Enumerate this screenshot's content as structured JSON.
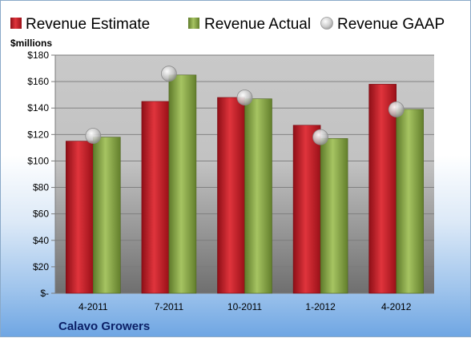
{
  "chart_data": {
    "type": "bar",
    "title": "Calavo Growers",
    "ylabel": "$millions",
    "categories": [
      "4-2011",
      "7-2011",
      "10-2011",
      "1-2012",
      "4-2012"
    ],
    "series": [
      {
        "name": "Revenue Estimate",
        "kind": "bar",
        "color": "#c8202a",
        "values": [
          115,
          145,
          148,
          127,
          158
        ]
      },
      {
        "name": "Revenue Actual",
        "kind": "bar",
        "color": "#8fae4a",
        "values": [
          118,
          165,
          147,
          117,
          139
        ]
      },
      {
        "name": "Revenue GAAP",
        "kind": "marker",
        "color": "#c4c4c4",
        "values": [
          119,
          166,
          148,
          118,
          139
        ]
      }
    ],
    "ylim": [
      0,
      180
    ],
    "yticks": [
      0,
      20,
      40,
      60,
      80,
      100,
      120,
      140,
      160,
      180
    ],
    "ytick_labels": [
      "$-",
      "$20",
      "$40",
      "$60",
      "$80",
      "$100",
      "$120",
      "$140",
      "$160",
      "$180"
    ],
    "grid": true,
    "legend_position": "top"
  }
}
